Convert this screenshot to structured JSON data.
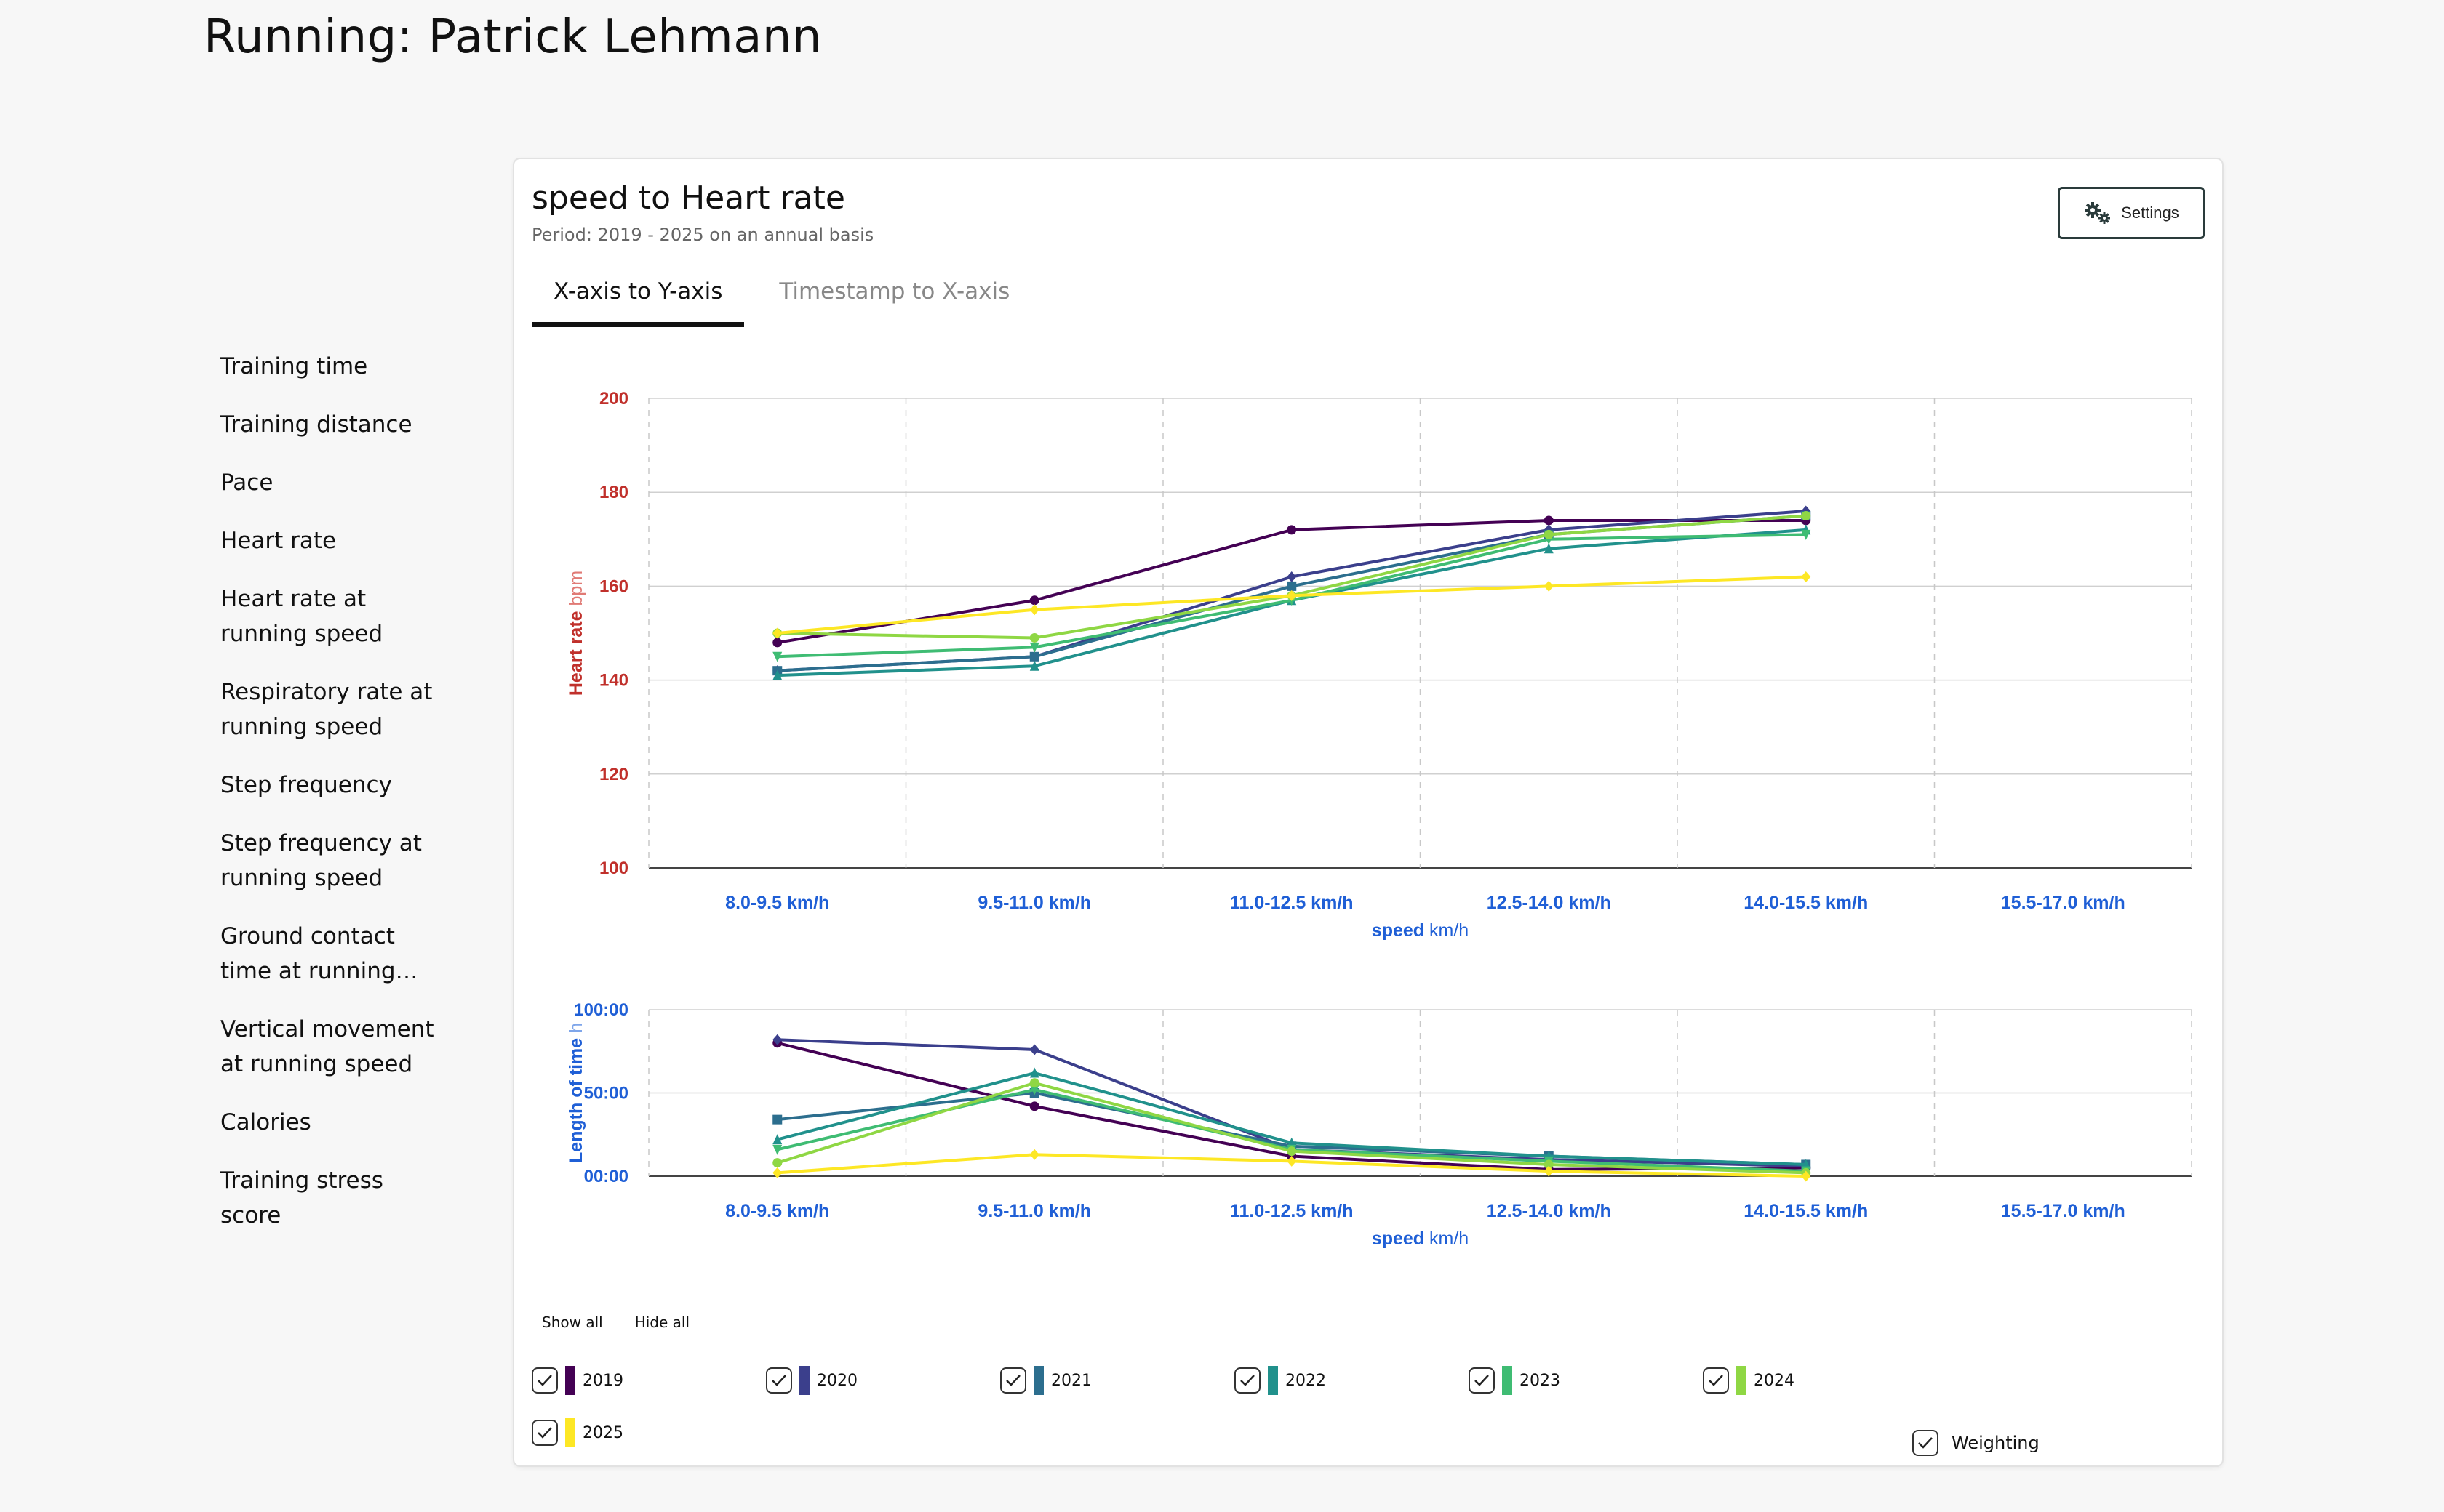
{
  "page": {
    "title": "Running: Patrick Lehmann"
  },
  "sidebar": {
    "items": [
      {
        "label": "Training time"
      },
      {
        "label": "Training distance"
      },
      {
        "label": "Pace"
      },
      {
        "label": "Heart rate"
      },
      {
        "label": "Heart rate at running speed"
      },
      {
        "label": "Respiratory rate at running speed"
      },
      {
        "label": "Step frequency"
      },
      {
        "label": "Step frequency at running speed"
      },
      {
        "label": "Ground contact time at running speed"
      },
      {
        "label": "Vertical movement at running speed"
      },
      {
        "label": "Calories"
      },
      {
        "label": "Training stress score"
      }
    ]
  },
  "card": {
    "title": "speed to Heart rate",
    "subtitle": "Period: 2019 - 2025 on an annual basis",
    "settings_label": "Settings",
    "tabs": [
      {
        "label": "X-axis to Y-axis"
      },
      {
        "label": "Timestamp to X-axis"
      }
    ]
  },
  "colors": {
    "2019": "#440154",
    "2020": "#3b3f8c",
    "2021": "#2c6e8e",
    "2022": "#21918c",
    "2023": "#3fbc73",
    "2024": "#8fd744",
    "2025": "#fde725",
    "axis_red": "#c0302b",
    "axis_blue": "#1f5fd6"
  },
  "chart_data": [
    {
      "type": "line",
      "title": "speed to Heart rate",
      "categories": [
        "8.0-9.5 km/h",
        "9.5-11.0 km/h",
        "11.0-12.5 km/h",
        "12.5-14.0 km/h",
        "14.0-15.5 km/h",
        "15.5-17.0 km/h"
      ],
      "xlabel": "speed",
      "xunit": "km/h",
      "ylabel": "Heart rate",
      "yunit": "bpm",
      "ylim": [
        100,
        200
      ],
      "yticks": [
        100,
        120,
        140,
        160,
        180,
        200
      ],
      "series": [
        {
          "name": "2019",
          "values": [
            148,
            157,
            172,
            174,
            174,
            null
          ]
        },
        {
          "name": "2020",
          "values": [
            142,
            145,
            162,
            172,
            176,
            null
          ]
        },
        {
          "name": "2021",
          "values": [
            142,
            145,
            160,
            171,
            175,
            null
          ]
        },
        {
          "name": "2022",
          "values": [
            141,
            143,
            157,
            168,
            172,
            null
          ]
        },
        {
          "name": "2023",
          "values": [
            145,
            147,
            157,
            170,
            171,
            null
          ]
        },
        {
          "name": "2024",
          "values": [
            150,
            149,
            158,
            171,
            175,
            null
          ]
        },
        {
          "name": "2025",
          "values": [
            150,
            155,
            158,
            160,
            162,
            null
          ]
        }
      ]
    },
    {
      "type": "line",
      "categories": [
        "8.0-9.5 km/h",
        "9.5-11.0 km/h",
        "11.0-12.5 km/h",
        "12.5-14.0 km/h",
        "14.0-15.5 km/h",
        "15.5-17.0 km/h"
      ],
      "xlabel": "speed",
      "xunit": "km/h",
      "ylabel": "Length of time",
      "yunit": "h",
      "ylim": [
        0,
        100
      ],
      "yticks": [
        0,
        50,
        100
      ],
      "ytick_labels": [
        "00:00",
        "50:00",
        "100:00"
      ],
      "series": [
        {
          "name": "2019",
          "values": [
            80,
            42,
            12,
            4,
            5,
            null
          ]
        },
        {
          "name": "2020",
          "values": [
            82,
            76,
            16,
            10,
            6,
            null
          ]
        },
        {
          "name": "2021",
          "values": [
            34,
            50,
            18,
            12,
            7,
            null
          ]
        },
        {
          "name": "2022",
          "values": [
            22,
            62,
            20,
            12,
            7,
            null
          ]
        },
        {
          "name": "2023",
          "values": [
            16,
            52,
            16,
            9,
            3,
            null
          ]
        },
        {
          "name": "2024",
          "values": [
            8,
            56,
            15,
            7,
            2,
            null
          ]
        },
        {
          "name": "2025",
          "values": [
            2,
            13,
            9,
            3,
            0,
            null
          ]
        }
      ]
    }
  ],
  "legend": {
    "show_all": "Show all",
    "hide_all": "Hide all",
    "years": [
      "2019",
      "2020",
      "2021",
      "2022",
      "2023",
      "2024",
      "2025"
    ],
    "weighting_label": "Weighting"
  }
}
